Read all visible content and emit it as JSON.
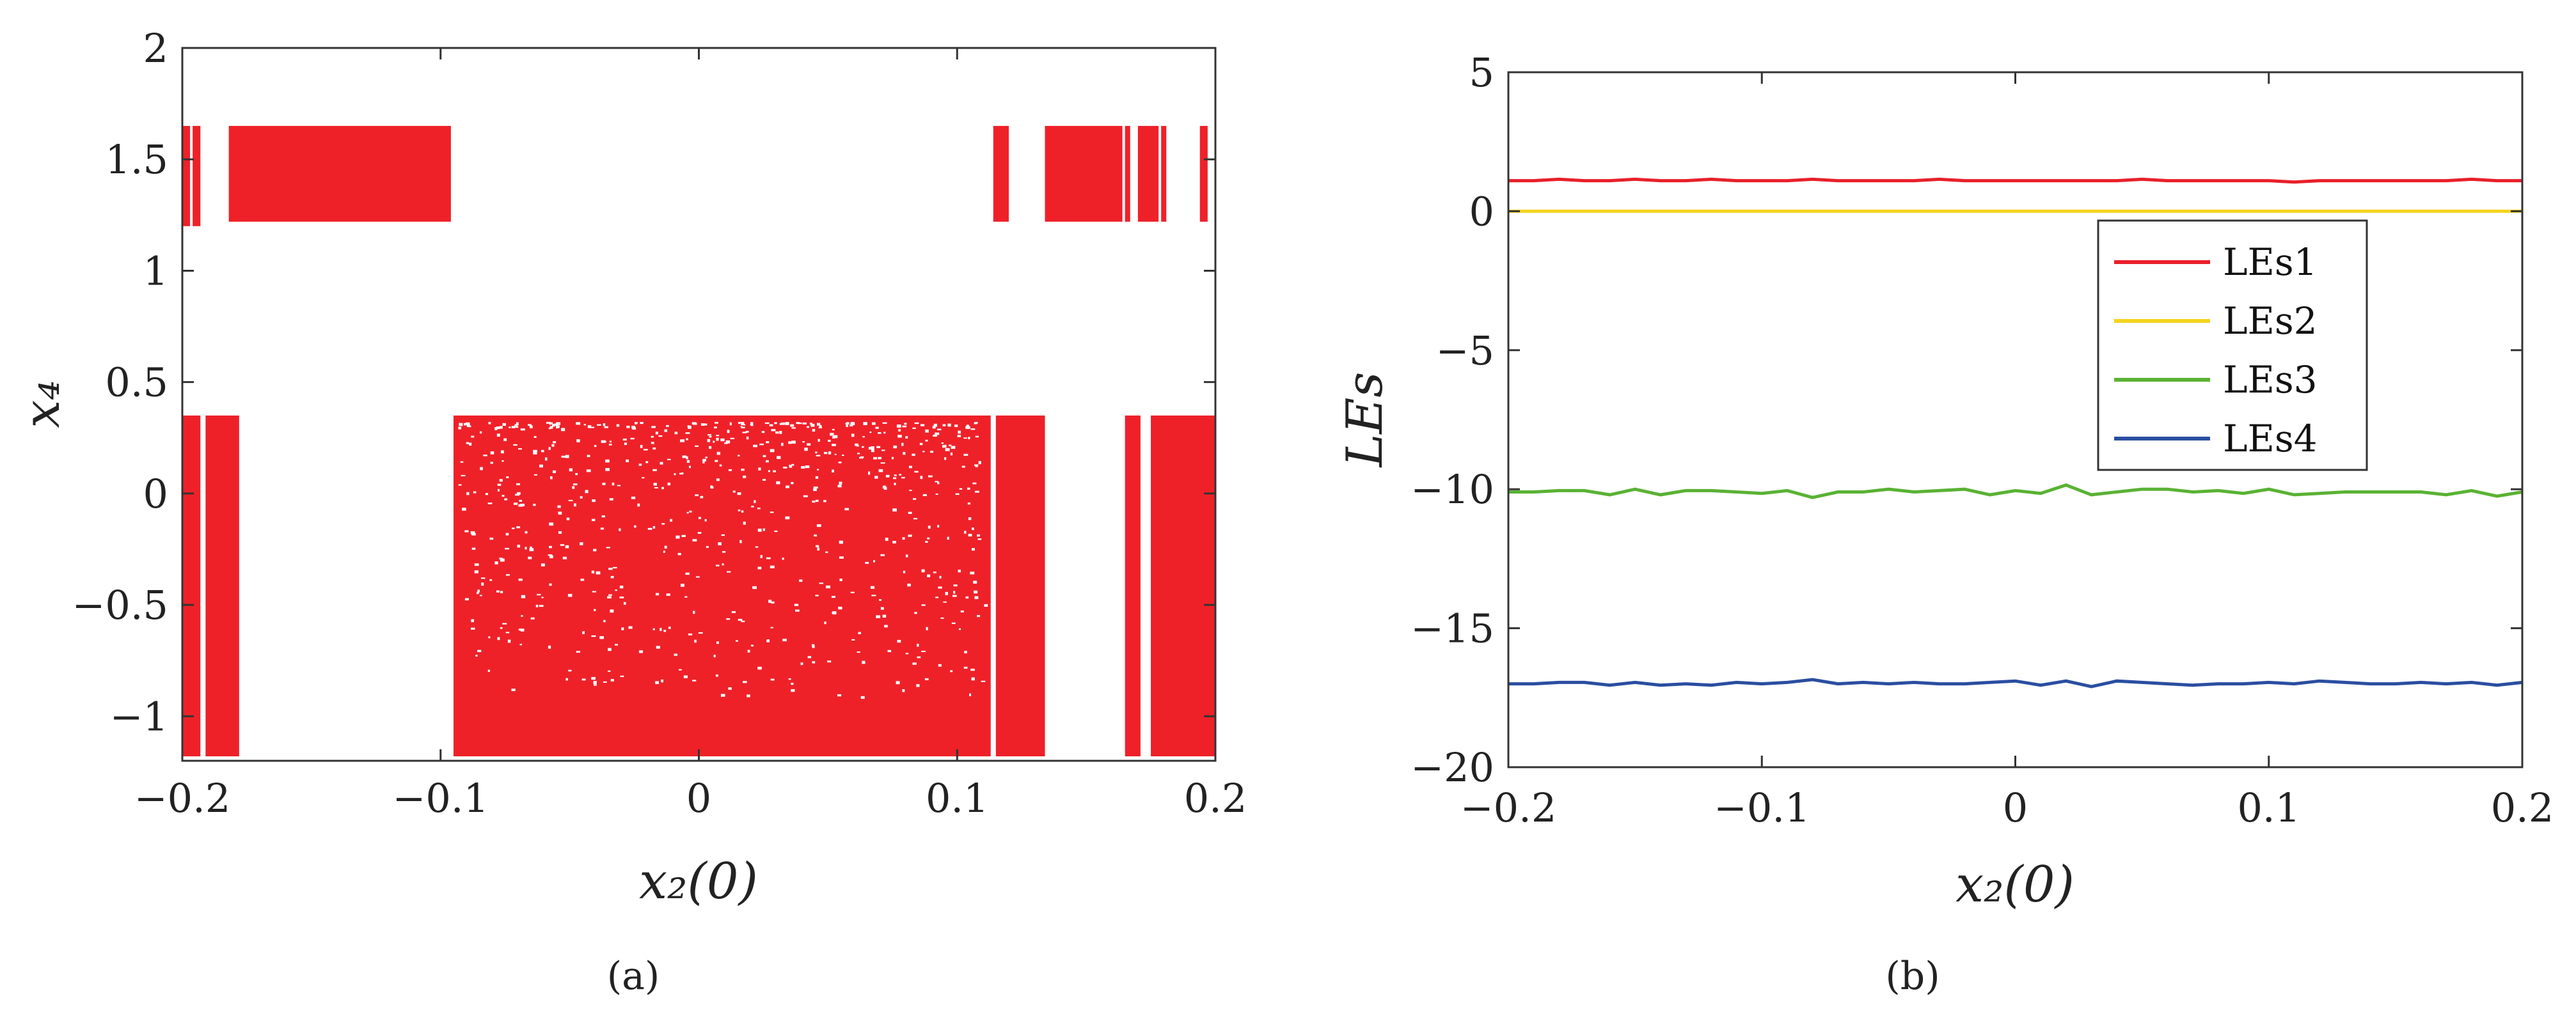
{
  "chart_data": [
    {
      "type": "scatter",
      "xlabel": "x₂(0)",
      "ylabel": "x₄",
      "subfigure_label": "(a)",
      "xlim": [
        -0.2,
        0.2
      ],
      "ylim": [
        -1.2,
        2
      ],
      "xticks": [
        "−0.2",
        "−0.1",
        "0",
        "0.1",
        "0.2"
      ],
      "xtick_values": [
        -0.2,
        -0.1,
        0,
        0.1,
        0.2
      ],
      "yticks": [
        "−1",
        "−0.5",
        "0",
        "0.5",
        "1",
        "1.5",
        "2"
      ],
      "ytick_values": [
        -1,
        -0.5,
        0,
        0.5,
        1,
        1.5,
        2
      ],
      "grid": false,
      "point_color": "#ee2129",
      "bands": [
        {
          "x_from": -0.2,
          "x_to": -0.197,
          "y_from": 1.2,
          "y_to": 1.65
        },
        {
          "x_from": -0.196,
          "x_to": -0.193,
          "y_from": 1.2,
          "y_to": 1.65
        },
        {
          "x_from": -0.182,
          "x_to": -0.096,
          "y_from": 1.22,
          "y_to": 1.65
        },
        {
          "x_from": 0.114,
          "x_to": 0.12,
          "y_from": 1.22,
          "y_to": 1.65
        },
        {
          "x_from": 0.134,
          "x_to": 0.164,
          "y_from": 1.22,
          "y_to": 1.65
        },
        {
          "x_from": 0.165,
          "x_to": 0.167,
          "y_from": 1.22,
          "y_to": 1.65
        },
        {
          "x_from": 0.17,
          "x_to": 0.178,
          "y_from": 1.22,
          "y_to": 1.65
        },
        {
          "x_from": 0.179,
          "x_to": 0.181,
          "y_from": 1.22,
          "y_to": 1.65
        },
        {
          "x_from": 0.194,
          "x_to": 0.197,
          "y_from": 1.22,
          "y_to": 1.65
        },
        {
          "x_from": -0.2,
          "x_to": -0.193,
          "y_from": -1.18,
          "y_to": 0.35
        },
        {
          "x_from": -0.191,
          "x_to": -0.178,
          "y_from": -1.18,
          "y_to": 0.35
        },
        {
          "x_from": -0.095,
          "x_to": 0.113,
          "y_from": -1.18,
          "y_to": 0.35
        },
        {
          "x_from": 0.115,
          "x_to": 0.134,
          "y_from": -1.18,
          "y_to": 0.35
        },
        {
          "x_from": 0.165,
          "x_to": 0.171,
          "y_from": -1.18,
          "y_to": 0.35
        },
        {
          "x_from": 0.175,
          "x_to": 0.2,
          "y_from": -1.18,
          "y_to": 0.35
        }
      ]
    },
    {
      "type": "line",
      "xlabel": "x₂(0)",
      "ylabel": "LEs",
      "subfigure_label": "(b)",
      "xlim": [
        -0.2,
        0.2
      ],
      "ylim": [
        -20,
        5
      ],
      "xticks": [
        "−0.2",
        "−0.1",
        "0",
        "0.1",
        "0.2"
      ],
      "xtick_values": [
        -0.2,
        -0.1,
        0,
        0.1,
        0.2
      ],
      "yticks": [
        "5",
        "0",
        "−5",
        "−10",
        "−15",
        "−20"
      ],
      "ytick_values": [
        5,
        0,
        -5,
        -10,
        -15,
        -20
      ],
      "grid": false,
      "legend_position": "right",
      "x": [
        -0.2,
        -0.19,
        -0.18,
        -0.17,
        -0.16,
        -0.15,
        -0.14,
        -0.13,
        -0.12,
        -0.11,
        -0.1,
        -0.09,
        -0.08,
        -0.07,
        -0.06,
        -0.05,
        -0.04,
        -0.03,
        -0.02,
        -0.01,
        0,
        0.01,
        0.02,
        0.03,
        0.04,
        0.05,
        0.06,
        0.07,
        0.08,
        0.09,
        0.1,
        0.11,
        0.12,
        0.13,
        0.14,
        0.15,
        0.16,
        0.17,
        0.18,
        0.19,
        0.2
      ],
      "series": [
        {
          "name": "LEs1",
          "color": "#e8202a",
          "values": [
            1.1,
            1.1,
            1.15,
            1.1,
            1.1,
            1.15,
            1.1,
            1.1,
            1.15,
            1.1,
            1.1,
            1.1,
            1.15,
            1.1,
            1.1,
            1.1,
            1.1,
            1.15,
            1.1,
            1.1,
            1.1,
            1.1,
            1.1,
            1.1,
            1.1,
            1.15,
            1.1,
            1.1,
            1.1,
            1.1,
            1.1,
            1.05,
            1.1,
            1.1,
            1.1,
            1.1,
            1.1,
            1.1,
            1.15,
            1.1,
            1.1
          ]
        },
        {
          "name": "LEs2",
          "color": "#f2d41d",
          "values": [
            0,
            0,
            0,
            0,
            0,
            0,
            0,
            0,
            0,
            0,
            0,
            0,
            0,
            0,
            0,
            0,
            0,
            0,
            0,
            0,
            0,
            0,
            0,
            0,
            0,
            0,
            0,
            0,
            0,
            0,
            0,
            0,
            0,
            0,
            0,
            0,
            0,
            0,
            0,
            0,
            0
          ]
        },
        {
          "name": "LEs3",
          "color": "#5ab234",
          "values": [
            -10.1,
            -10.1,
            -10.05,
            -10.05,
            -10.2,
            -10.0,
            -10.2,
            -10.05,
            -10.05,
            -10.1,
            -10.15,
            -10.05,
            -10.3,
            -10.1,
            -10.1,
            -10.0,
            -10.1,
            -10.05,
            -10.0,
            -10.2,
            -10.05,
            -10.15,
            -9.85,
            -10.2,
            -10.1,
            -10.0,
            -10.0,
            -10.1,
            -10.05,
            -10.15,
            -10.0,
            -10.2,
            -10.15,
            -10.1,
            -10.1,
            -10.1,
            -10.1,
            -10.2,
            -10.05,
            -10.25,
            -10.1
          ]
        },
        {
          "name": "LEs4",
          "color": "#2a4ea0",
          "values": [
            -17.0,
            -17.0,
            -16.95,
            -16.95,
            -17.05,
            -16.95,
            -17.05,
            -17.0,
            -17.05,
            -16.95,
            -17.0,
            -16.95,
            -16.85,
            -17.0,
            -16.95,
            -17.0,
            -16.95,
            -17.0,
            -17.0,
            -16.95,
            -16.9,
            -17.05,
            -16.9,
            -17.1,
            -16.9,
            -16.95,
            -17.0,
            -17.05,
            -17.0,
            -17.0,
            -16.95,
            -17.0,
            -16.9,
            -16.95,
            -17.0,
            -17.0,
            -16.95,
            -17.0,
            -16.95,
            -17.05,
            -16.95
          ]
        }
      ]
    }
  ]
}
